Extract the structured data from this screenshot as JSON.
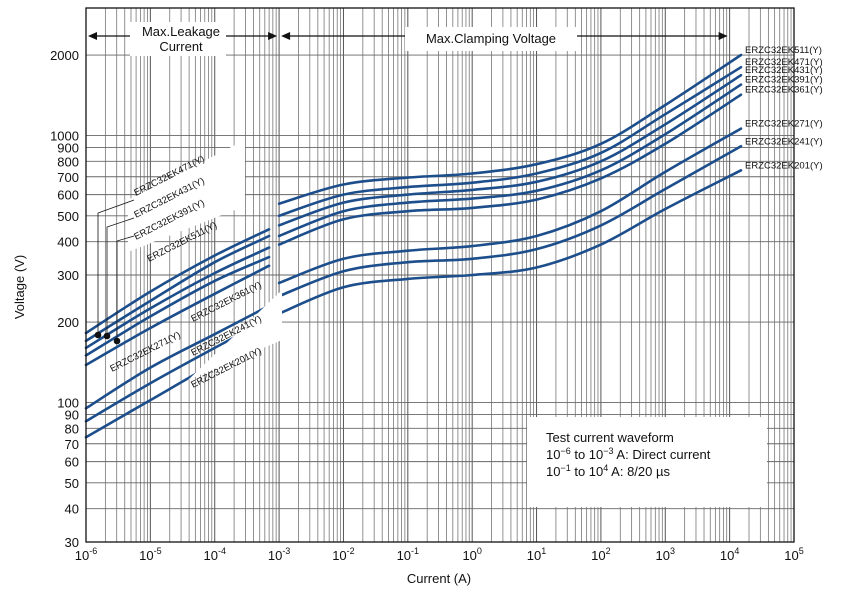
{
  "chart_data": {
    "type": "line",
    "title": "",
    "xlabel": "Current (A)",
    "ylabel": "Voltage (V)",
    "x_scale": "log",
    "y_scale": "log",
    "xlim": [
      1e-06,
      100000.0
    ],
    "ylim": [
      30,
      3000
    ],
    "grid": true,
    "x_ticks": [
      {
        "value": 1e-06,
        "base": "10",
        "exp": "-6"
      },
      {
        "value": 1e-05,
        "base": "10",
        "exp": "-5"
      },
      {
        "value": 0.0001,
        "base": "10",
        "exp": "-4"
      },
      {
        "value": 0.001,
        "base": "10",
        "exp": "-3"
      },
      {
        "value": 0.01,
        "base": "10",
        "exp": "-2"
      },
      {
        "value": 0.1,
        "base": "10",
        "exp": "-1"
      },
      {
        "value": 1,
        "base": "10",
        "exp": "0"
      },
      {
        "value": 10,
        "base": "10",
        "exp": "1"
      },
      {
        "value": 100,
        "base": "10",
        "exp": "2"
      },
      {
        "value": 1000,
        "base": "10",
        "exp": "3"
      },
      {
        "value": 10000,
        "base": "10",
        "exp": "4"
      },
      {
        "value": 100000,
        "base": "10",
        "exp": "5"
      }
    ],
    "y_ticks": [
      {
        "value": 30,
        "label": "30"
      },
      {
        "value": 40,
        "label": "40"
      },
      {
        "value": 50,
        "label": "50"
      },
      {
        "value": 60,
        "label": "60"
      },
      {
        "value": 70,
        "label": "70"
      },
      {
        "value": 80,
        "label": "80"
      },
      {
        "value": 90,
        "label": "90"
      },
      {
        "value": 100,
        "label": "100"
      },
      {
        "value": 200,
        "label": "200"
      },
      {
        "value": 300,
        "label": "300"
      },
      {
        "value": 400,
        "label": "400"
      },
      {
        "value": 500,
        "label": "500"
      },
      {
        "value": 600,
        "label": "600"
      },
      {
        "value": 700,
        "label": "700"
      },
      {
        "value": 800,
        "label": "800"
      },
      {
        "value": 900,
        "label": "900"
      },
      {
        "value": 1000,
        "label": "1000"
      },
      {
        "value": 2000,
        "label": "2000"
      }
    ],
    "regions": [
      {
        "label": "Max.Leakage\nCurrent",
        "from": 1e-06,
        "to": 0.001
      },
      {
        "label": "Max.Clamping Voltage",
        "from": 0.001,
        "to": 10000
      }
    ],
    "annotation": {
      "line1": "Test current waveform",
      "line2_a": "10",
      "line2_exp_a": "−6",
      "line2_b": " to 10",
      "line2_exp_b": "−3",
      "line2_c": " A: Direct current",
      "line3_a": "10",
      "line3_exp_a": "−1",
      "line3_b": " to 10",
      "line3_exp_b": "4",
      "line3_c": " A: 8/20 µs"
    },
    "leakage_labels_upper": [
      "ERZC32EK471(Y)",
      "ERZC32EK431(Y)",
      "ERZC32EK391(Y)",
      "ERZC32EK511(Y)"
    ],
    "leakage_labels_lower": [
      "ERZC32EK361(Y)",
      "ERZC32EK271(Y)",
      "ERZC32EK241(Y)",
      "ERZC32EK201(Y)"
    ],
    "series": [
      {
        "name": "ERZC32EK511(Y)",
        "leakage": {
          "x": [
            1e-06,
            1e-05,
            0.0001,
            0.0007
          ],
          "y": [
            182,
            260,
            355,
            445
          ]
        },
        "clamping": {
          "x": [
            0.001,
            0.01,
            0.1,
            1,
            10,
            100,
            1000,
            15000
          ],
          "y": [
            555,
            655,
            695,
            720,
            780,
            930,
            1300,
            2000
          ]
        }
      },
      {
        "name": "ERZC32EK471(Y)",
        "leakage": {
          "x": [
            1e-06,
            1e-05,
            0.0001,
            0.0007
          ],
          "y": [
            170,
            240,
            335,
            420
          ]
        },
        "clamping": {
          "x": [
            0.001,
            0.01,
            0.1,
            1,
            10,
            100,
            1000,
            15000
          ],
          "y": [
            500,
            600,
            640,
            665,
            720,
            860,
            1200,
            1800
          ]
        }
      },
      {
        "name": "ERZC32EK431(Y)",
        "leakage": {
          "x": [
            1e-06,
            1e-05,
            0.0001,
            0.0007
          ],
          "y": [
            160,
            225,
            305,
            380
          ]
        },
        "clamping": {
          "x": [
            0.001,
            0.01,
            0.1,
            1,
            10,
            100,
            1000,
            15000
          ],
          "y": [
            460,
            560,
            600,
            625,
            670,
            800,
            1100,
            1680
          ]
        }
      },
      {
        "name": "ERZC32EK391(Y)",
        "leakage": {
          "x": [
            1e-06,
            1e-05,
            0.0001,
            0.0007
          ],
          "y": [
            150,
            210,
            285,
            350
          ]
        },
        "clamping": {
          "x": [
            0.001,
            0.01,
            0.1,
            1,
            10,
            100,
            1000,
            15000
          ],
          "y": [
            420,
            520,
            560,
            580,
            620,
            740,
            1010,
            1550
          ]
        }
      },
      {
        "name": "ERZC32EK361(Y)",
        "leakage": {
          "x": [
            1e-06,
            1e-05,
            0.0001,
            0.0007
          ],
          "y": [
            138,
            190,
            255,
            325
          ]
        },
        "clamping": {
          "x": [
            0.001,
            0.01,
            0.1,
            1,
            10,
            100,
            1000,
            15000
          ],
          "y": [
            390,
            485,
            520,
            535,
            575,
            690,
            930,
            1420
          ]
        }
      },
      {
        "name": "ERZC32EK271(Y)",
        "leakage": {
          "x": [
            1e-06,
            1e-05,
            0.0001,
            0.0007
          ],
          "y": [
            95,
            135,
            180,
            230
          ]
        },
        "clamping": {
          "x": [
            0.001,
            0.01,
            0.1,
            1,
            10,
            100,
            1000,
            15000
          ],
          "y": [
            280,
            345,
            370,
            385,
            420,
            520,
            730,
            1060
          ]
        }
      },
      {
        "name": "ERZC32EK241(Y)",
        "leakage": {
          "x": [
            1e-06,
            1e-05,
            0.0001,
            0.0007
          ],
          "y": [
            85,
            118,
            160,
            205
          ]
        },
        "clamping": {
          "x": [
            0.001,
            0.01,
            0.1,
            1,
            10,
            100,
            1000,
            15000
          ],
          "y": [
            250,
            310,
            335,
            345,
            375,
            460,
            630,
            910
          ]
        }
      },
      {
        "name": "ERZC32EK201(Y)",
        "leakage": {
          "x": [
            1e-06,
            1e-05,
            0.0001,
            0.0007
          ],
          "y": [
            74,
            102,
            140,
            178
          ]
        },
        "clamping": {
          "x": [
            0.001,
            0.01,
            0.1,
            1,
            10,
            100,
            1000,
            15000
          ],
          "y": [
            215,
            270,
            290,
            300,
            320,
            390,
            530,
            740
          ]
        }
      }
    ]
  }
}
